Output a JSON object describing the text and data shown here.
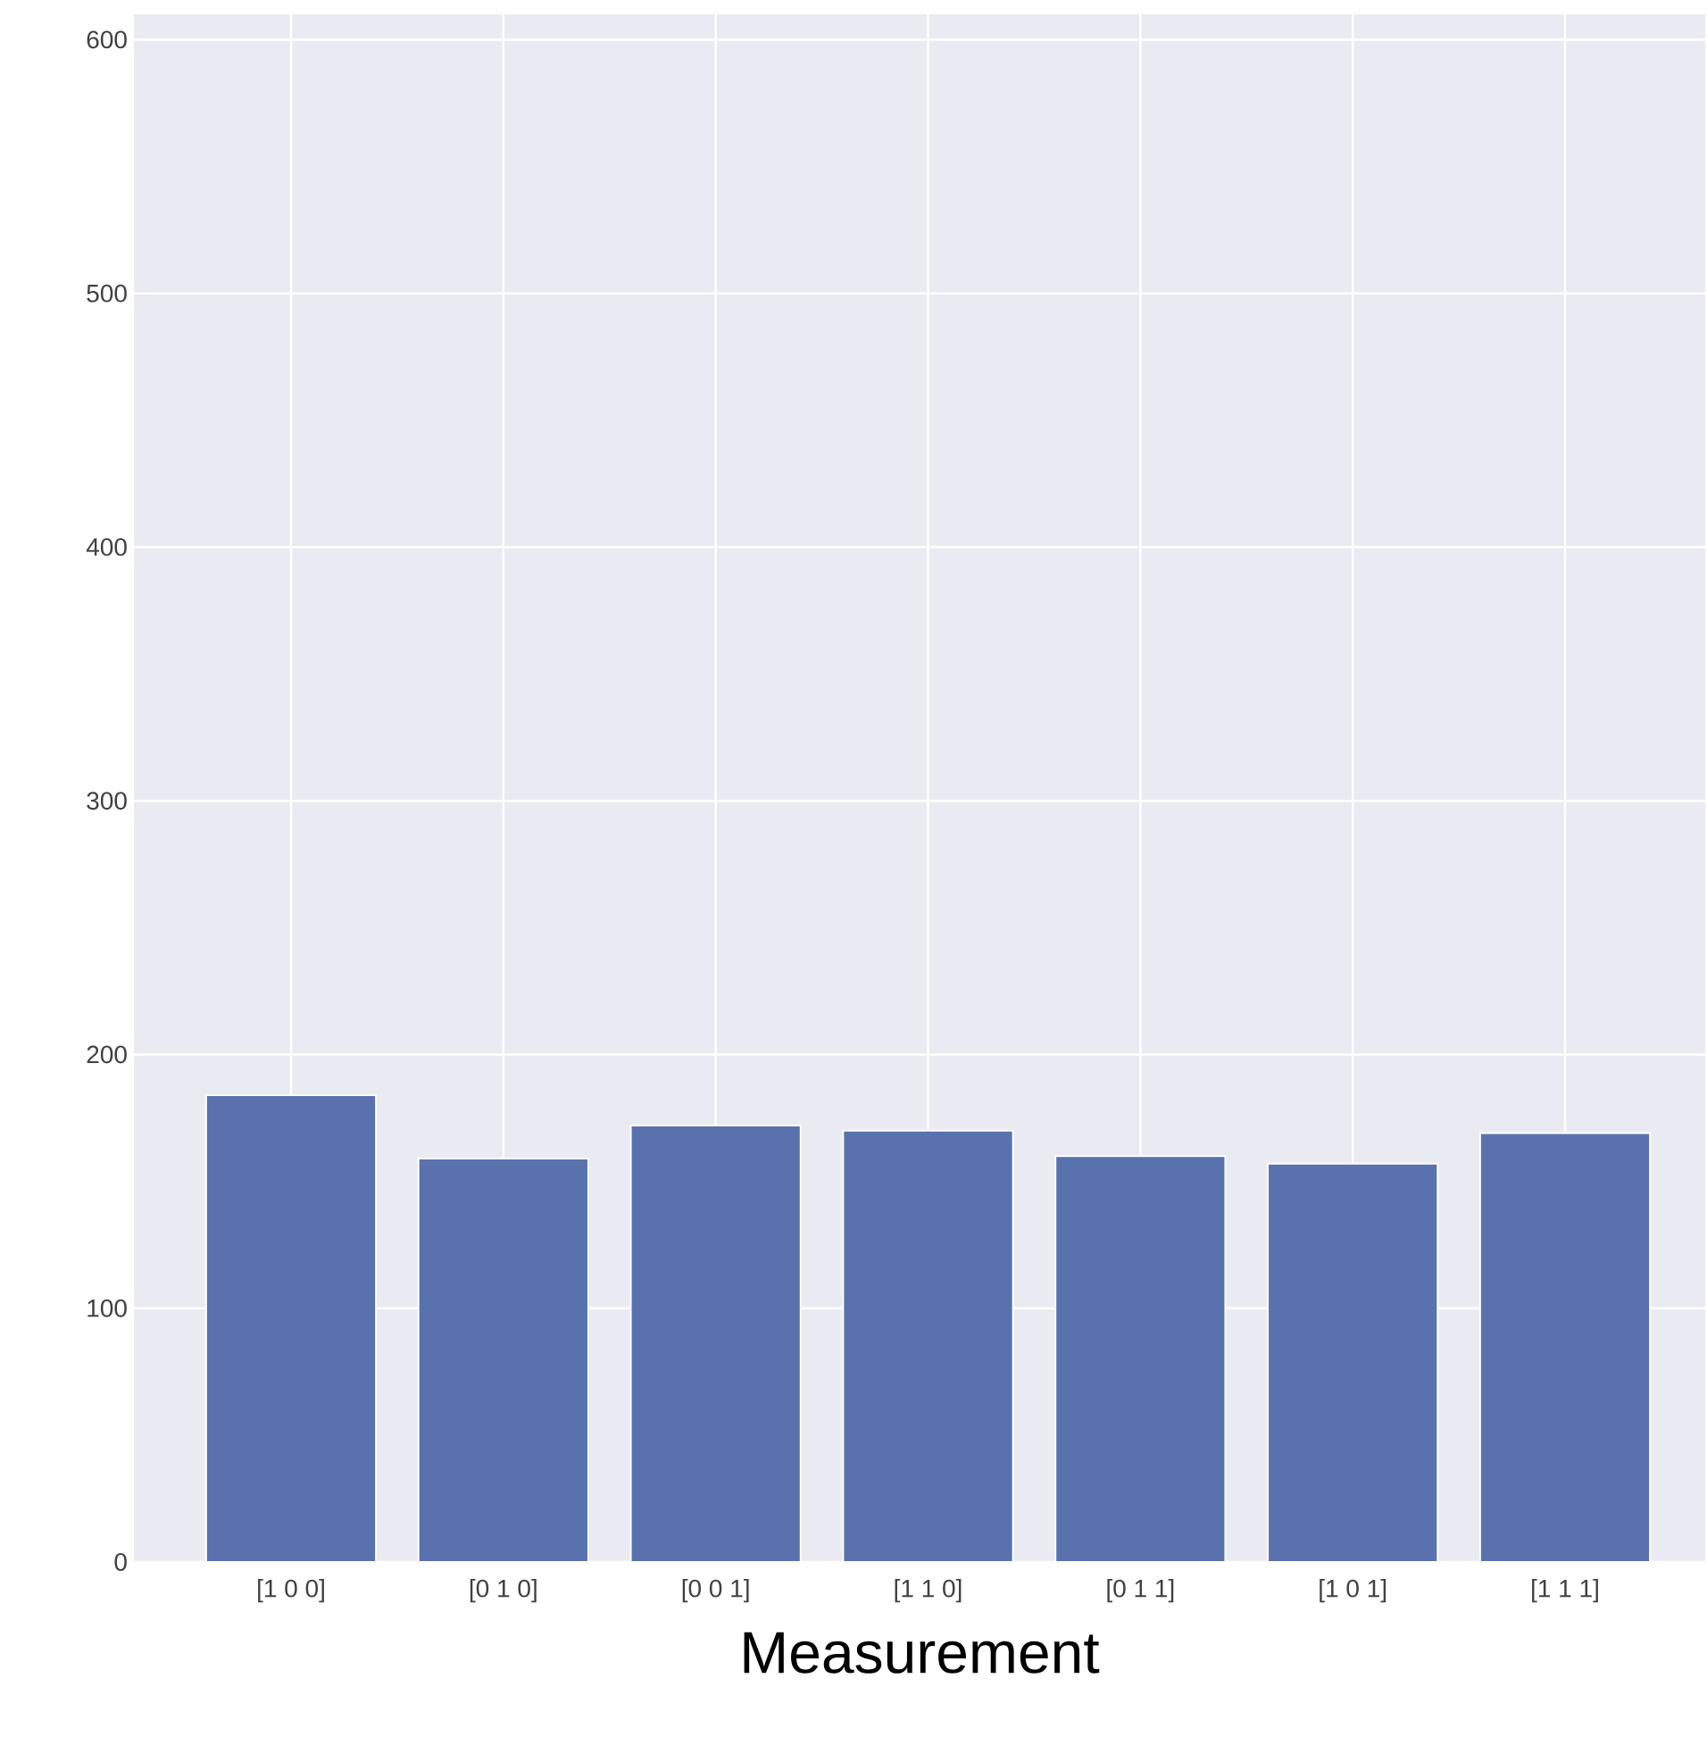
{
  "chart_data": {
    "type": "bar",
    "xlabel": "Measurement",
    "categories": [
      "[1 0 0]",
      "[0 1 0]",
      "[0 0 1]",
      "[1 1 0]",
      "[0 1 1]",
      "[1 0 1]",
      "[1 1 1]"
    ],
    "values": [
      184,
      159,
      172,
      170,
      160,
      157,
      169
    ],
    "color": "#5971ac",
    "ylim": [
      0,
      610
    ],
    "yticks": [
      0,
      100,
      200,
      300,
      400,
      500,
      600
    ],
    "grid": true
  }
}
